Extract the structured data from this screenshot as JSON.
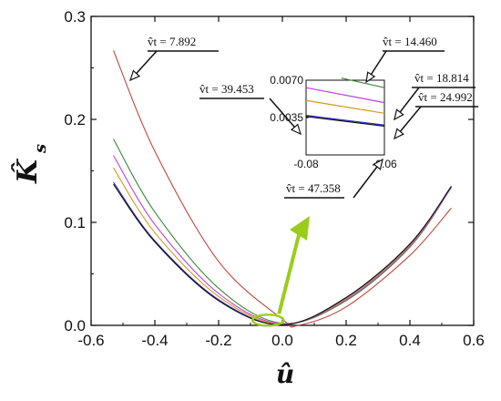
{
  "chart_data": {
    "type": "line",
    "xlabel": "û",
    "ylabel": "K̂",
    "ylabel_sub": "s",
    "xlim": [
      -0.6,
      0.6
    ],
    "ylim": [
      0,
      0.3
    ],
    "x_ticks": [
      "-0.6",
      "-0.4",
      "-0.2",
      "0.0",
      "0.2",
      "0.4",
      "0.6"
    ],
    "y_ticks": [
      "0.0",
      "0.1",
      "0.2",
      "0.3"
    ],
    "series": [
      {
        "name": "v̂t = 7.892",
        "color": "#c0483a",
        "x": [
          -0.53,
          -0.4,
          -0.2,
          0.0,
          0.05,
          0.2,
          0.4,
          0.53
        ],
        "y": [
          0.267,
          0.169,
          0.062,
          0.006,
          0.0,
          0.018,
          0.068,
          0.114
        ]
      },
      {
        "name": "v̂t = 14.460",
        "color": "#3a8a3a",
        "x": [
          -0.53,
          -0.4,
          -0.2,
          0.0,
          0.2,
          0.4,
          0.53
        ],
        "y": [
          0.181,
          0.11,
          0.036,
          0.002,
          0.024,
          0.076,
          0.134
        ]
      },
      {
        "name": "v̂t = 18.814",
        "color": "#c040e0",
        "x": [
          -0.53,
          -0.4,
          -0.2,
          0.0,
          0.2,
          0.4,
          0.53
        ],
        "y": [
          0.165,
          0.098,
          0.031,
          0.0015,
          0.025,
          0.077,
          0.134
        ]
      },
      {
        "name": "v̂t = 24.992",
        "color": "#d49a1a",
        "x": [
          -0.53,
          -0.4,
          -0.2,
          0.0,
          0.2,
          0.4,
          0.53
        ],
        "y": [
          0.153,
          0.09,
          0.028,
          0.001,
          0.026,
          0.078,
          0.135
        ]
      },
      {
        "name": "v̂t = 39.453",
        "color": "#2a2ad0",
        "x": [
          -0.53,
          -0.4,
          -0.2,
          0.0,
          0.2,
          0.4,
          0.53
        ],
        "y": [
          0.139,
          0.082,
          0.025,
          0.0005,
          0.027,
          0.079,
          0.135
        ]
      },
      {
        "name": "v̂t = 47.358",
        "color": "#111111",
        "x": [
          -0.53,
          -0.4,
          -0.2,
          0.0,
          0.2,
          0.4,
          0.53
        ],
        "y": [
          0.137,
          0.081,
          0.024,
          0.0004,
          0.027,
          0.079,
          0.135
        ]
      }
    ],
    "inset": {
      "xlim": [
        -0.08,
        -0.06
      ],
      "ylim": [
        0.0,
        0.007
      ],
      "x_ticks": [
        "-0.08",
        "-0.06"
      ],
      "y_ticks": [
        "0.0035",
        "0.0070"
      ],
      "series": [
        {
          "name": "v̂t = 14.460",
          "color": "#3a8a3a",
          "x": [
            -0.071,
            -0.06
          ],
          "y": [
            0.0072,
            0.0063
          ]
        },
        {
          "name": "v̂t = 18.814",
          "color": "#c040e0",
          "x": [
            -0.08,
            -0.06
          ],
          "y": [
            0.0063,
            0.0049
          ]
        },
        {
          "name": "v̂t = 24.992",
          "color": "#d49a1a",
          "x": [
            -0.08,
            -0.06
          ],
          "y": [
            0.0051,
            0.0039
          ]
        },
        {
          "name": "v̂t = 39.453",
          "color": "#2a2ad0",
          "x": [
            -0.08,
            -0.06
          ],
          "y": [
            0.0037,
            0.0028
          ]
        },
        {
          "name": "v̂t = 47.358",
          "color": "#111111",
          "x": [
            -0.08,
            -0.06
          ],
          "y": [
            0.0036,
            0.0027
          ]
        }
      ]
    },
    "annotations": [
      {
        "text": "v̂t = 7.892"
      },
      {
        "text": "v̂t = 14.460"
      },
      {
        "text": "v̂t = 18.814"
      },
      {
        "text": "v̂t = 24.992"
      },
      {
        "text": "v̂t = 39.453"
      },
      {
        "text": "v̂t = 47.358"
      }
    ],
    "callout_color": "#9acd1a"
  }
}
